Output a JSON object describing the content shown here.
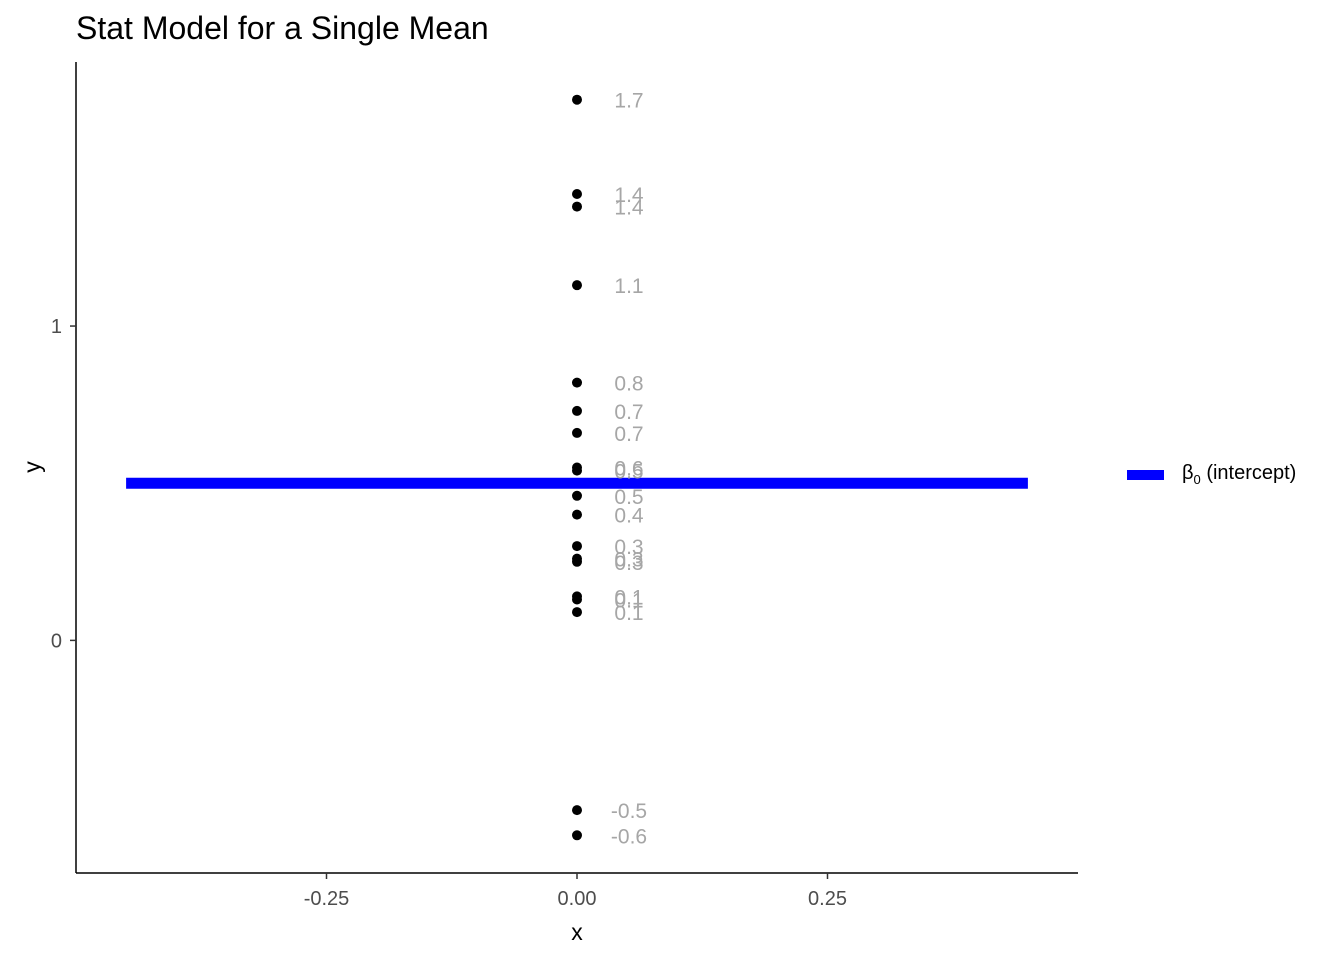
{
  "chart_data": {
    "type": "scatter",
    "title": "Stat Model for a Single Mean",
    "xlabel": "x",
    "ylabel": "y",
    "xlim": [
      -0.5,
      0.5
    ],
    "ylim": [
      -0.74,
      1.84
    ],
    "x_ticks": [
      {
        "value": -0.25,
        "label": "-0.25"
      },
      {
        "value": 0.0,
        "label": "0.00"
      },
      {
        "value": 0.25,
        "label": "0.25"
      }
    ],
    "y_ticks": [
      {
        "value": 0,
        "label": "0"
      },
      {
        "value": 1,
        "label": "1"
      }
    ],
    "points": [
      {
        "x": 0,
        "y": 1.72,
        "label": "1.7"
      },
      {
        "x": 0,
        "y": 1.42,
        "label": "1.4"
      },
      {
        "x": 0,
        "y": 1.38,
        "label": "1.4"
      },
      {
        "x": 0,
        "y": 1.13,
        "label": "1.1"
      },
      {
        "x": 0,
        "y": 0.82,
        "label": "0.8"
      },
      {
        "x": 0,
        "y": 0.73,
        "label": "0.7"
      },
      {
        "x": 0,
        "y": 0.66,
        "label": "0.7"
      },
      {
        "x": 0,
        "y": 0.55,
        "label": "0.6"
      },
      {
        "x": 0,
        "y": 0.54,
        "label": "0.5"
      },
      {
        "x": 0,
        "y": 0.46,
        "label": "0.5"
      },
      {
        "x": 0,
        "y": 0.4,
        "label": "0.4"
      },
      {
        "x": 0,
        "y": 0.3,
        "label": "0.3"
      },
      {
        "x": 0,
        "y": 0.26,
        "label": "0.3"
      },
      {
        "x": 0,
        "y": 0.25,
        "label": "0.3"
      },
      {
        "x": 0,
        "y": 0.14,
        "label": "0.1"
      },
      {
        "x": 0,
        "y": 0.13,
        "label": "0.1"
      },
      {
        "x": 0,
        "y": 0.09,
        "label": "0.1"
      },
      {
        "x": 0,
        "y": -0.54,
        "label": "-0.5"
      },
      {
        "x": 0,
        "y": -0.62,
        "label": "-0.6"
      }
    ],
    "intercept_line": {
      "y": 0.5,
      "x_from": -0.45,
      "x_to": 0.45,
      "color": "#0000ff"
    },
    "grid": false,
    "legend": {
      "position": "right",
      "entries": [
        {
          "symbol": "β",
          "subscript": "0",
          "text": "(intercept)",
          "color": "#0000ff"
        }
      ]
    },
    "colors": {
      "points": "#000000",
      "data_labels": "#a6a6a6",
      "axis": "#000000",
      "tick_labels": "#4d4d4d"
    }
  }
}
